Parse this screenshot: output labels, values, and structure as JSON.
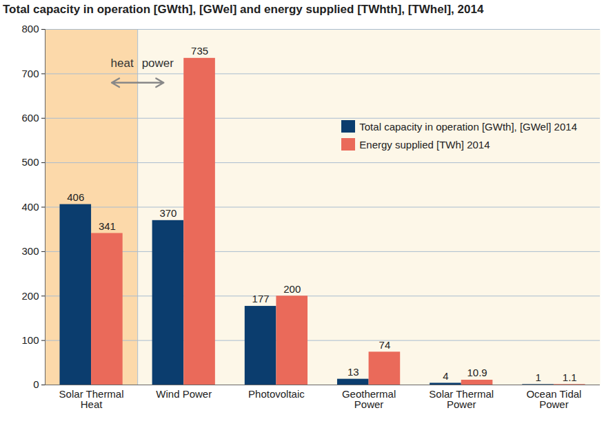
{
  "chart_data": {
    "type": "bar",
    "title": "Total capacity in operation [GWth], [GWel] and energy supplied [TWhth], [TWhel], 2014",
    "categories": [
      "Solar Thermal Heat",
      "Wind Power",
      "Photovoltaic",
      "Geothermal Power",
      "Solar Thermal Power",
      "Ocean Tidal Power"
    ],
    "series": [
      {
        "name": "Total capacity in operation [GWth], [GWel] 2014",
        "color": "#0b3d6e",
        "values": [
          406,
          370,
          177,
          13,
          4,
          1
        ]
      },
      {
        "name": "Energy supplied [TWh] 2014",
        "color": "#ea6a5a",
        "values": [
          341,
          735,
          200,
          74,
          10.9,
          1.1
        ]
      }
    ],
    "ylim": [
      0,
      800
    ],
    "yticks": [
      0,
      100,
      200,
      300,
      400,
      500,
      600,
      700,
      800
    ],
    "grid": true,
    "legend": "top-right",
    "data_labels": true,
    "annotations": [
      "heat",
      "power"
    ]
  }
}
